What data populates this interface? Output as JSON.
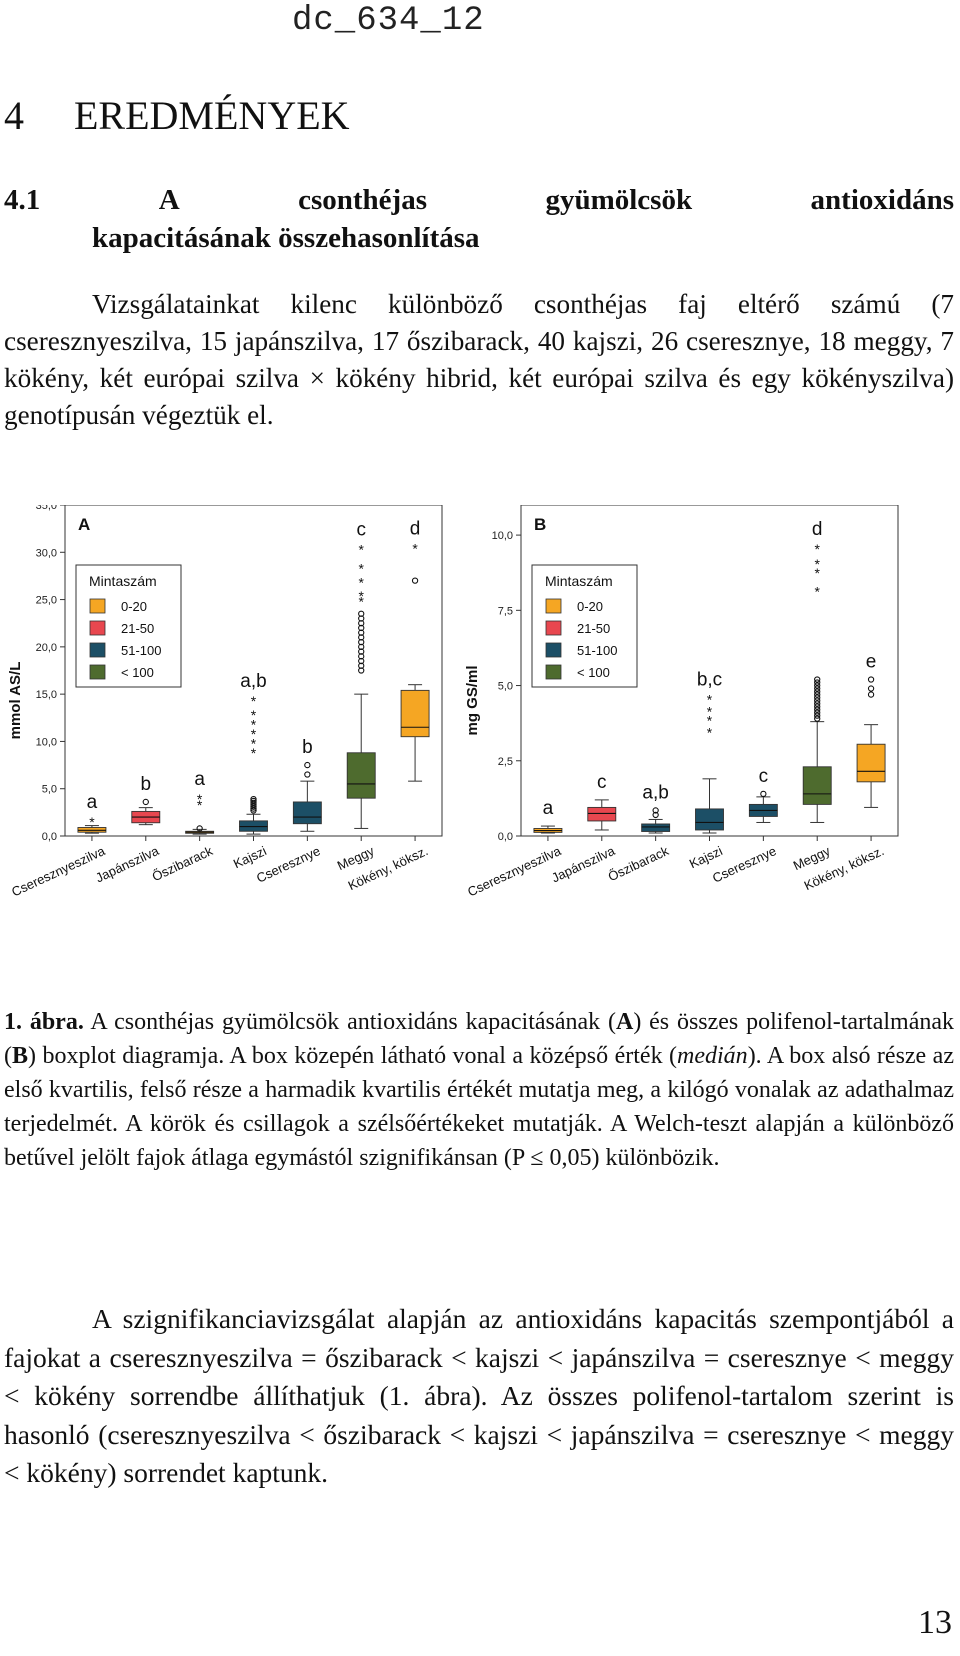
{
  "header": {
    "doc_id": "dc_634_12"
  },
  "chapter": {
    "number": "4",
    "title": "EREDMÉNYEK"
  },
  "section": {
    "number": "4.1",
    "words": [
      "A",
      "csonthéjas",
      "gyümölcsök",
      "antioxidáns"
    ],
    "line2": "kapacitásának összehasonlítása"
  },
  "intro_paragraph": "Vizsgálatainkat kilenc különböző csonthéjas faj eltérő számú (7 cseresznyeszilva, 15 japánszilva, 17 őszibarack, 40 kajszi, 26 cseresznye, 18 meggy, 7 kökény, két európai szilva × kökény hibrid, két európai szilva és egy kökényszilva) genotípusán végeztük el.",
  "chart_data": [
    {
      "type": "boxplot",
      "panel": "A",
      "ylabel": "mmol AS/L",
      "ylim": [
        0,
        35
      ],
      "yticks": [
        "0,0",
        "5,0",
        "10,0",
        "15,0",
        "20,0",
        "25,0",
        "30,0",
        "35,0"
      ],
      "categories": [
        "Cseresznyeszilva",
        "Japánszilva",
        "Őszibarack",
        "Kajszi",
        "Cseresznye",
        "Meggy",
        "Kökény, köksz."
      ],
      "legend": {
        "title": "Mintaszám",
        "entries": [
          "0-20",
          "21-50",
          "51-100",
          "< 100"
        ],
        "colors": [
          "#f5a623",
          "#e8474f",
          "#1c4f66",
          "#4e6b2e"
        ],
        "placement": "top-left"
      },
      "boxes": [
        {
          "min": 0.3,
          "q1": 0.4,
          "median": 0.6,
          "q3": 0.9,
          "max": 1.1,
          "group": 0,
          "sig": "a"
        },
        {
          "min": 1.2,
          "q1": 1.4,
          "median": 2.0,
          "q3": 2.6,
          "max": 3.0,
          "group": 1,
          "sig": "b"
        },
        {
          "min": 0.2,
          "q1": 0.3,
          "median": 0.4,
          "q3": 0.5,
          "max": 0.7,
          "group": 0,
          "sig": "a"
        },
        {
          "min": 0.2,
          "q1": 0.5,
          "median": 1.0,
          "q3": 1.6,
          "max": 2.3,
          "group": 2,
          "sig": "a,b"
        },
        {
          "min": 0.5,
          "q1": 1.3,
          "median": 2.0,
          "q3": 3.6,
          "max": 5.8,
          "group": 2,
          "sig": "b"
        },
        {
          "min": 0.8,
          "q1": 4.0,
          "median": 5.5,
          "q3": 8.8,
          "max": 15.0,
          "group": 3,
          "sig": "c"
        },
        {
          "min": 5.8,
          "q1": 10.5,
          "median": 11.5,
          "q3": 15.4,
          "max": 16.0,
          "group": 0,
          "sig": "d"
        }
      ],
      "outliers": [
        {
          "cat": 0,
          "values": [
            1.7
          ],
          "marker": "star"
        },
        {
          "cat": 1,
          "values": [
            3.6
          ],
          "marker": "circle"
        },
        {
          "cat": 2,
          "values": [
            0.8
          ],
          "marker": "circle"
        },
        {
          "cat": 2,
          "values": [
            3.5,
            4.1
          ],
          "marker": "star"
        },
        {
          "cat": 3,
          "values": [
            2.7,
            2.9,
            3.1,
            3.3,
            3.5,
            3.7,
            3.9
          ],
          "marker": "circle"
        },
        {
          "cat": 3,
          "values": [
            9.0,
            10.0,
            11.0,
            12.0,
            13.0,
            14.5
          ],
          "marker": "star"
        },
        {
          "cat": 4,
          "values": [
            6.5,
            7.5
          ],
          "marker": "circle"
        },
        {
          "cat": 5,
          "values": [
            17.5,
            18.0,
            18.5,
            19.0,
            19.5,
            20.0,
            20.5,
            21.0,
            21.5,
            22.0,
            22.5,
            23.0,
            23.5
          ],
          "marker": "circle"
        },
        {
          "cat": 5,
          "values": [
            25.0,
            25.6,
            27.0,
            28.5,
            30.5
          ],
          "marker": "star"
        },
        {
          "cat": 6,
          "values": [
            27.0
          ],
          "marker": "circle"
        },
        {
          "cat": 6,
          "values": [
            30.6
          ],
          "marker": "star"
        }
      ]
    },
    {
      "type": "boxplot",
      "panel": "B",
      "ylabel": "mg GS/ml",
      "ylim": [
        0,
        11
      ],
      "yticks": [
        "0,0",
        "2,5",
        "5,0",
        "7,5",
        "10,0"
      ],
      "categories": [
        "Cseresznyeszilva",
        "Japánszilva",
        "Őszibarack",
        "Kajszi",
        "Cseresznye",
        "Meggy",
        "Kökény, köksz."
      ],
      "legend": {
        "title": "Mintaszám",
        "entries": [
          "0-20",
          "21-50",
          "51-100",
          "< 100"
        ],
        "colors": [
          "#f5a623",
          "#e8474f",
          "#1c4f66",
          "#4e6b2e"
        ],
        "placement": "top-left"
      },
      "boxes": [
        {
          "min": 0.1,
          "q1": 0.12,
          "median": 0.18,
          "q3": 0.25,
          "max": 0.33,
          "group": 0,
          "sig": "a"
        },
        {
          "min": 0.2,
          "q1": 0.5,
          "median": 0.75,
          "q3": 0.95,
          "max": 1.2,
          "group": 1,
          "sig": "c"
        },
        {
          "min": 0.1,
          "q1": 0.15,
          "median": 0.3,
          "q3": 0.4,
          "max": 0.55,
          "group": 2,
          "sig": "a,b"
        },
        {
          "min": 0.1,
          "q1": 0.2,
          "median": 0.45,
          "q3": 0.9,
          "max": 1.9,
          "group": 2,
          "sig": "b,c"
        },
        {
          "min": 0.45,
          "q1": 0.65,
          "median": 0.85,
          "q3": 1.05,
          "max": 1.3,
          "group": 2,
          "sig": "c"
        },
        {
          "min": 0.45,
          "q1": 1.05,
          "median": 1.4,
          "q3": 2.3,
          "max": 3.8,
          "group": 3,
          "sig": "d"
        },
        {
          "min": 0.95,
          "q1": 1.8,
          "median": 2.15,
          "q3": 3.05,
          "max": 3.7,
          "group": 0,
          "sig": "e"
        }
      ],
      "outliers": [
        {
          "cat": 2,
          "values": [
            0.7,
            0.85
          ],
          "marker": "circle"
        },
        {
          "cat": 3,
          "values": [
            3.5,
            3.9,
            4.2,
            4.6
          ],
          "marker": "star"
        },
        {
          "cat": 4,
          "values": [
            1.4
          ],
          "marker": "circle"
        },
        {
          "cat": 5,
          "values": [
            3.9,
            4.0,
            4.1,
            4.2,
            4.3,
            4.4,
            4.5,
            4.6,
            4.7,
            4.8,
            4.9,
            5.0,
            5.1,
            5.2
          ],
          "marker": "circle"
        },
        {
          "cat": 5,
          "values": [
            8.2,
            8.8,
            9.1,
            9.6
          ],
          "marker": "star"
        },
        {
          "cat": 6,
          "values": [
            4.7,
            4.9,
            5.2
          ],
          "marker": "circle"
        }
      ]
    }
  ],
  "caption": {
    "label": "1. ábra.",
    "text_1": " A csonthéjas gyümölcsök antioxidáns kapacitásának (",
    "bold_A": "A",
    "text_2": ") és összes polifenol-tartalmának (",
    "bold_B": "B",
    "text_3": ") boxplot diagramja. A box közepén látható vonal a középső érték (",
    "italic": "medián",
    "text_4": "). A box alsó része az első kvartilis, felső része a harmadik kvartilis értékét mutatja meg, a kilógó vonalak az adathalmaz terjedelmét. A körök és csillagok a szélsőértékeket mutatják. A Welch-teszt alapján a különböző betűvel jelölt fajok átlaga egymástól szignifikánsan (P ≤ 0,05) különbözik."
  },
  "results_paragraph": "A szignifikanciavizsgálat alapján az antioxidáns kapacitás szempontjából a fajokat a cseresznyeszilva = őszibarack < kajszi < japánszilva = cseresznye < meggy < kökény sorrendbe állíthatjuk (1. ábra). Az összes polifenol-tartalom szerint is hasonló (cseresznyeszilva < őszibarack < kajszi < japánszilva = cseresznye < meggy < kökény) sorrendet kaptunk.",
  "page_number": "13"
}
